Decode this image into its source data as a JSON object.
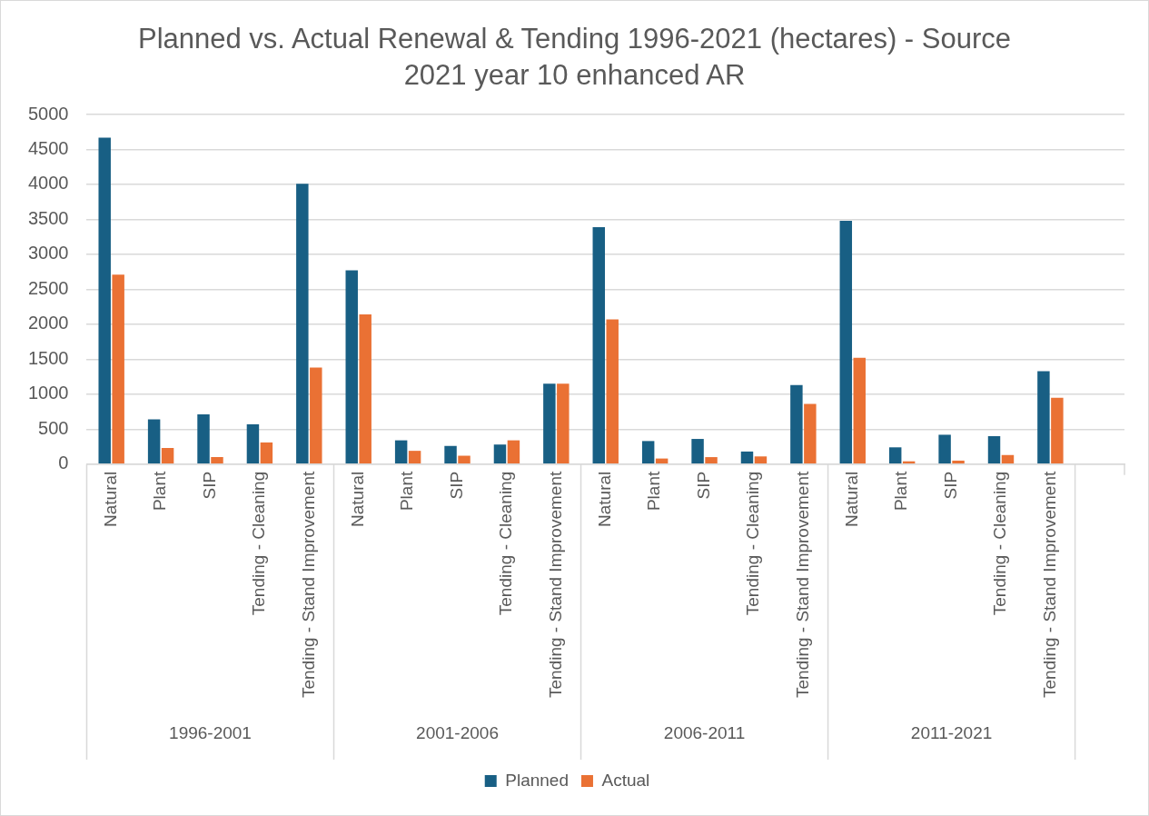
{
  "chart_data": {
    "type": "bar",
    "title": "Planned vs. Actual Renewal & Tending 1996-2021 (hectares) - Source 2021 year 10 enhanced AR",
    "categories": [
      "Natural",
      "Plant",
      "SIP",
      "Tending - Cleaning",
      "Tending - Stand Improvement",
      "Natural",
      "Plant",
      "SIP",
      "Tending - Cleaning",
      "Tending - Stand Improvement",
      "Natural",
      "Plant",
      "SIP",
      "Tending - Cleaning",
      "Tending - Stand Improvement",
      "Natural",
      "Plant",
      "SIP",
      "Tending - Cleaning",
      "Tending - Stand Improvement",
      null
    ],
    "series": [
      {
        "name": "Planned",
        "color": "#185f84",
        "values": [
          4670,
          640,
          710,
          570,
          4010,
          2770,
          340,
          260,
          280,
          1150,
          3390,
          330,
          360,
          180,
          1130,
          3480,
          240,
          420,
          400,
          1330,
          null
        ]
      },
      {
        "name": "Actual",
        "color": "#ea7134",
        "values": [
          2710,
          230,
          100,
          310,
          1380,
          2140,
          190,
          120,
          340,
          1150,
          2070,
          80,
          100,
          110,
          860,
          1520,
          40,
          50,
          130,
          950,
          null
        ]
      }
    ],
    "annotations": [
      "1996-2001",
      "2001-2006",
      "2006-2011",
      "2011-2021"
    ],
    "ylim": [
      0,
      5000
    ],
    "yticks": [
      0,
      500,
      1000,
      1500,
      2000,
      2500,
      3000,
      3500,
      4000,
      4500,
      5000
    ],
    "grid": "y",
    "legend": "bottom"
  }
}
